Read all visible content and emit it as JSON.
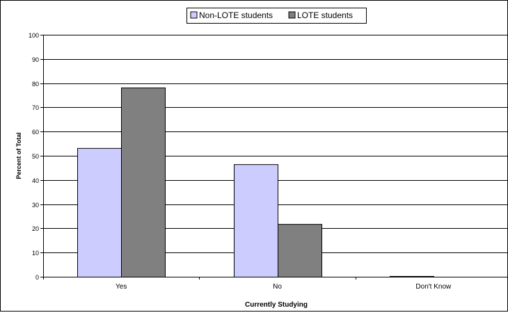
{
  "chart_data": {
    "type": "bar",
    "categories": [
      "Yes",
      "No",
      "Don't Know"
    ],
    "series": [
      {
        "name": "Non-LOTE students",
        "values": [
          53.2,
          46.5,
          0.3
        ],
        "color": "#ccccff"
      },
      {
        "name": "LOTE students",
        "values": [
          78.2,
          21.8,
          0.0
        ],
        "color": "#808080"
      }
    ],
    "xlabel": "Currently Studying",
    "ylabel": "Percent of Total",
    "ylim": [
      0,
      100
    ],
    "yticks": [
      0,
      10,
      20,
      30,
      40,
      50,
      60,
      70,
      80,
      90,
      100
    ],
    "grid": true,
    "legend_position": "top-center"
  }
}
